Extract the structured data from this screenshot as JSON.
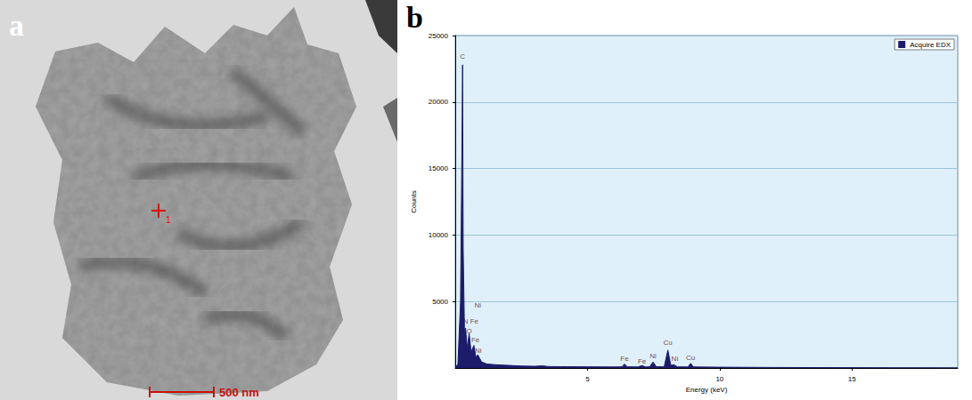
{
  "panel_a": {
    "letter": "a",
    "scale_bar": "500 nm",
    "point_label": "1"
  },
  "panel_b": {
    "letter": "b"
  },
  "chart_data": {
    "type": "line",
    "x_label": "Energy (keV)",
    "y_label": "Counts",
    "x": [
      0,
      0.1,
      0.2,
      0.25,
      0.277,
      0.3,
      0.35,
      0.39,
      0.45,
      0.525,
      0.6,
      0.705,
      0.78,
      0.85,
      0.93,
      1.0,
      1.2,
      1.5,
      2.0,
      2.5,
      3.0,
      3.3,
      3.5,
      4.0,
      5.0,
      6.0,
      6.3,
      6.4,
      6.5,
      6.9,
      7.06,
      7.2,
      7.35,
      7.48,
      7.6,
      7.9,
      8.04,
      8.15,
      8.26,
      8.4,
      8.8,
      8.9,
      9.0,
      10,
      12,
      14,
      16,
      18,
      19
    ],
    "series": [
      {
        "name": "Acquire EDX",
        "color": "#1c1c6b",
        "values": [
          0,
          300,
          5000,
          16000,
          22800,
          9000,
          2600,
          3000,
          1500,
          2600,
          1200,
          1700,
          800,
          1000,
          700,
          450,
          300,
          250,
          200,
          150,
          130,
          160,
          110,
          100,
          90,
          80,
          90,
          300,
          90,
          80,
          180,
          80,
          90,
          450,
          100,
          90,
          1350,
          200,
          250,
          90,
          80,
          350,
          80,
          60,
          40,
          30,
          20,
          15,
          10
        ]
      }
    ],
    "xlim": [
      0,
      19
    ],
    "xticks": [
      5,
      10,
      15
    ],
    "ylim": [
      0,
      25000
    ],
    "yticks": [
      5000,
      10000,
      15000,
      20000,
      25000
    ],
    "grid": true,
    "legend": "upper right",
    "annotations": [
      {
        "text": "C",
        "x": 0.277,
        "y": 23400
      },
      {
        "text": "Ni",
        "x": 0.85,
        "y": 4700
      },
      {
        "text": "N",
        "x": 0.39,
        "y": 3500
      },
      {
        "text": "Fe",
        "x": 0.72,
        "y": 3500
      },
      {
        "text": "O",
        "x": 0.525,
        "y": 2800
      },
      {
        "text": "Fe",
        "x": 0.76,
        "y": 2100
      },
      {
        "text": "Ni",
        "x": 0.87,
        "y": 1300
      },
      {
        "text": "Fe",
        "x": 6.4,
        "y": 700
      },
      {
        "text": "Fe",
        "x": 7.06,
        "y": 500
      },
      {
        "text": "Ni",
        "x": 7.48,
        "y": 900
      },
      {
        "text": "Cu",
        "x": 8.04,
        "y": 1900
      },
      {
        "text": "Ni",
        "x": 8.3,
        "y": 700
      },
      {
        "text": "Cu",
        "x": 8.9,
        "y": 800
      }
    ]
  }
}
